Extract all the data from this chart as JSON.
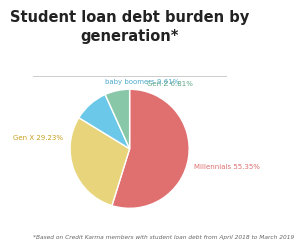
{
  "title": "Student loan debt burden by\ngeneration*",
  "slices": [
    {
      "label": "Millennials 55.35%",
      "value": 55.35,
      "color": "#e07070"
    },
    {
      "label": "Gen X 29.23%",
      "value": 29.23,
      "color": "#e8d47a"
    },
    {
      "label": "baby boomers 9.61%",
      "value": 9.61,
      "color": "#6cc8e8"
    },
    {
      "label": "Gen Z 6.81%",
      "value": 6.81,
      "color": "#88c8a8"
    }
  ],
  "footnote": "*Based on Credit Karma members with student loan debt from April 2018 to March 2019",
  "title_fontsize": 10.5,
  "footnote_fontsize": 4.2,
  "background_color": "#ffffff",
  "startangle": 90,
  "label_fontsize": 5.0,
  "label_colors": [
    "#e07070",
    "#c8a020",
    "#50aacc",
    "#60a888"
  ]
}
